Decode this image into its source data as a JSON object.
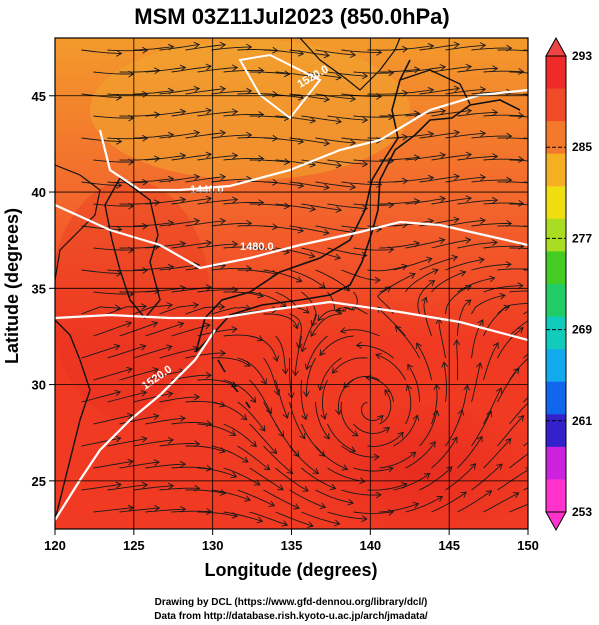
{
  "title": "MSM 03Z11Jul2023 (850.0hPa)",
  "map": {
    "xlabel": "Longitude (degrees)",
    "ylabel": "Latitude  (degrees)",
    "xlim": [
      120,
      150
    ],
    "ylim": [
      22.5,
      48
    ],
    "x_ticks": [
      "120",
      "125",
      "130",
      "135",
      "140",
      "145",
      "150"
    ],
    "y_ticks": [
      "25",
      "30",
      "35",
      "40",
      "45"
    ],
    "grid": true,
    "field_colors": {
      "north": "#f39a2c",
      "mid": "#f3642c",
      "south": "#f03a22",
      "warm_core": "#e62a1e"
    },
    "contour_labels": [
      "1440.0",
      "1480.0",
      "1520.0",
      "1520.0"
    ],
    "contour_color": "#ffffff",
    "streamline_color": "#1a1a1a",
    "vortex_center": [
      140.3,
      27.8
    ]
  },
  "colorbar": {
    "ticks": [
      "293",
      "285",
      "277",
      "269",
      "261",
      "253"
    ],
    "min": 253,
    "max": 293,
    "colors": [
      "#ff33cc",
      "#cc22dd",
      "#3322cc",
      "#1166ee",
      "#11aaee",
      "#11ccbb",
      "#22cc66",
      "#44cc22",
      "#aadd22",
      "#eedd11",
      "#f5b022",
      "#f37a2a",
      "#f04a28",
      "#ee2a2a"
    ]
  },
  "credits": {
    "line1": "Drawing by DCL (https://www.gfd-dennou.org/library/dcl/)",
    "line2": "Data from http://database.rish.kyoto-u.ac.jp/arch/jmadata/"
  }
}
